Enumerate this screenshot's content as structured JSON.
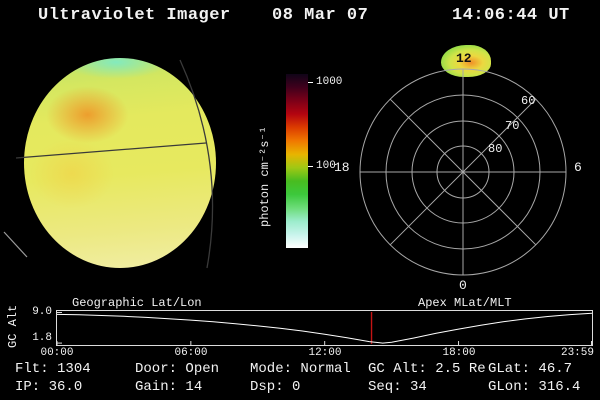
{
  "header": {
    "title": "Ultraviolet Imager",
    "date": "08 Mar 07",
    "time": "14:06:44 UT"
  },
  "status": {
    "rows": [
      [
        {
          "label": "Flt:",
          "value": "1304"
        },
        {
          "label": "Door:",
          "value": "Open"
        },
        {
          "label": "Mode:",
          "value": "Normal"
        },
        {
          "label": "GC Alt:",
          "value": "2.5 Re"
        },
        {
          "label": "GLat:",
          "value": "46.7"
        }
      ],
      [
        {
          "label": "IP:",
          "value": "36.0"
        },
        {
          "label": "Gain:",
          "value": "14"
        },
        {
          "label": "Dsp:",
          "value": "0"
        },
        {
          "label": "Seq:",
          "value": "34"
        },
        {
          "label": "GLon:",
          "value": "316.4"
        }
      ]
    ]
  },
  "chart_data": [
    {
      "id": "gc-alt-timeline",
      "type": "line",
      "ylabel": "GC Alt",
      "yticks": [
        "9.0",
        "1.8"
      ],
      "ylim": [
        1.35,
        9.35
      ],
      "xticks": [
        "00:00",
        "06:00",
        "12:00",
        "18:00",
        "23:59"
      ],
      "xlim_minutes": [
        0,
        1439
      ],
      "annotations": {
        "left": "Geographic Lat/Lon",
        "right": "Apex MLat/MLT"
      },
      "marker": {
        "time": "14:06",
        "color": "#c41414"
      },
      "line_color": "#ffffff",
      "grid": false,
      "series": [
        {
          "name": "GC Alt (Re)",
          "points": [
            [
              "00:00",
              8.55
            ],
            [
              "01:00",
              8.45
            ],
            [
              "02:00",
              8.3
            ],
            [
              "03:00",
              8.1
            ],
            [
              "04:00",
              7.85
            ],
            [
              "05:00",
              7.55
            ],
            [
              "06:00",
              7.2
            ],
            [
              "07:00",
              6.8
            ],
            [
              "08:00",
              6.35
            ],
            [
              "09:00",
              5.85
            ],
            [
              "10:00",
              5.3
            ],
            [
              "11:00",
              4.65
            ],
            [
              "12:00",
              3.9
            ],
            [
              "13:00",
              3.05
            ],
            [
              "14:00",
              2.15
            ],
            [
              "14:36",
              1.8
            ],
            [
              "15:00",
              2.0
            ],
            [
              "16:00",
              3.0
            ],
            [
              "17:00",
              4.1
            ],
            [
              "18:00",
              5.1
            ],
            [
              "19:00",
              6.0
            ],
            [
              "20:00",
              6.8
            ],
            [
              "21:00",
              7.5
            ],
            [
              "22:00",
              8.05
            ],
            [
              "23:00",
              8.5
            ],
            [
              "23:59",
              8.8
            ]
          ]
        }
      ]
    },
    {
      "id": "flux-colorbar",
      "type": "colorbar",
      "label": "photon cm⁻²s⁻¹",
      "scale": "log",
      "ticks": [
        {
          "value": "1000",
          "pos": 0.05
        },
        {
          "value": "100",
          "pos": 0.53
        }
      ],
      "gradient_top_to_bottom": [
        "#100418",
        "#40001c",
        "#7c0018",
        "#b40410",
        "#dc3c00",
        "#f07800",
        "#e8b400",
        "#a0c814",
        "#48bc20",
        "#3cc83c",
        "#6cdc78",
        "#9ceccc",
        "#c8f4ec",
        "#ffffff"
      ]
    },
    {
      "id": "apex-polar-dial",
      "type": "polar",
      "mlt_labels": {
        "top": "12",
        "left": "18",
        "right": "6",
        "bottom": "0"
      },
      "mlat_ring_labels": [
        "60",
        "70",
        "80"
      ],
      "rings": 4,
      "spoke_step_deg": 45,
      "feature_patch": {
        "location_mlt": "12",
        "colors": [
          "#f09028",
          "#ecd840",
          "#98dc48"
        ]
      }
    },
    {
      "id": "uv-earth-disk",
      "type": "heatmap",
      "description": "UV dayglow disk, yellow-green with orange patch upper-left and cyan limb at top"
    }
  ]
}
